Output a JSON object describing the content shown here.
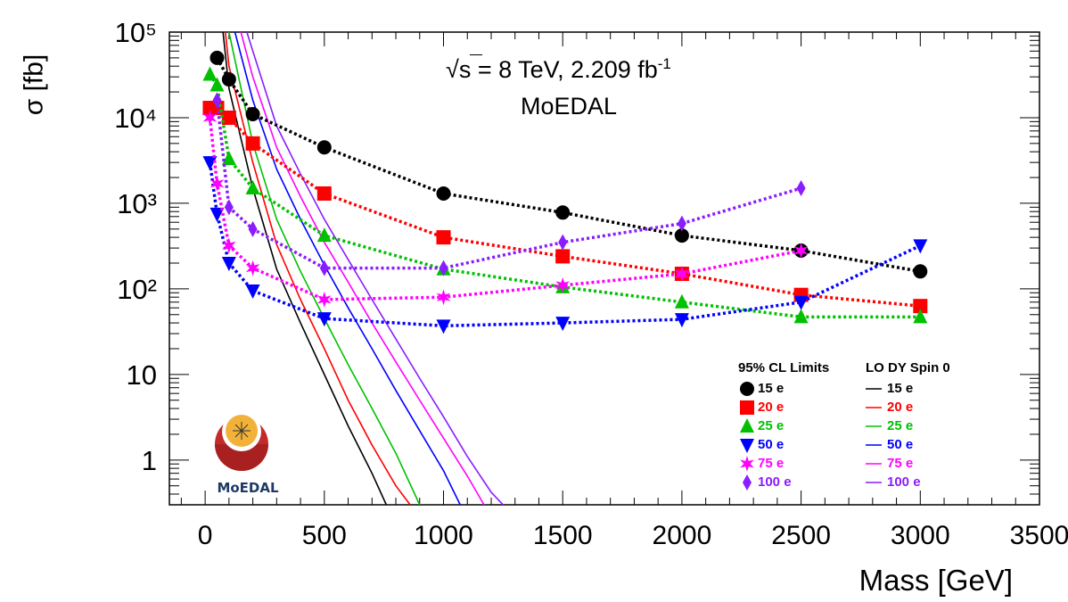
{
  "chart_data": {
    "type": "scatter",
    "xlabel": "Mass [GeV]",
    "ylabel": "σ [fb]",
    "xlim": [
      -150,
      3500
    ],
    "ylim": [
      0.3,
      100000
    ],
    "yscale": "log",
    "grid": false,
    "x_ticks": [
      0,
      500,
      1000,
      1500,
      2000,
      2500,
      3000,
      3500
    ],
    "x_tick_labels": [
      "0",
      "500",
      "1000",
      "1500",
      "2000",
      "2500",
      "3000",
      "3500"
    ],
    "y_ticks": [
      1,
      10,
      100,
      1000,
      10000,
      100000
    ],
    "y_tick_labels": [
      "1",
      "10",
      "10²",
      "10³",
      "10⁴",
      "10⁵"
    ],
    "annotations": {
      "energy_prefix": "s",
      "energy_text": " = 8 TeV, 2.209 fb",
      "lumi_exponent": "-1",
      "experiment": "MoEDAL"
    },
    "legend": {
      "placement": "bottom-right",
      "limits_header": "95% CL Limits",
      "theory_header": "LO DY Spin 0"
    },
    "limit_series": [
      {
        "name": "15 e",
        "color": "#000000",
        "marker": "circle",
        "x": [
          50,
          100,
          200,
          500,
          1000,
          1500,
          2000,
          2500,
          3000
        ],
        "values": [
          50000,
          28000,
          11000,
          4500,
          1300,
          780,
          420,
          280,
          160
        ]
      },
      {
        "name": "20 e",
        "color": "#ff0000",
        "marker": "square",
        "x": [
          20,
          50,
          100,
          200,
          500,
          1000,
          1500,
          2000,
          2500,
          3000
        ],
        "values": [
          13000,
          13000,
          10000,
          5000,
          1300,
          400,
          240,
          150,
          85,
          63
        ]
      },
      {
        "name": "25 e",
        "color": "#00c000",
        "marker": "triangle-up",
        "x": [
          20,
          50,
          100,
          200,
          500,
          1000,
          1500,
          2000,
          2500,
          3000
        ],
        "values": [
          32000,
          24000,
          3300,
          1500,
          420,
          170,
          105,
          70,
          47,
          47
        ]
      },
      {
        "name": "50 e",
        "color": "#0000ff",
        "marker": "triangle-down",
        "x": [
          20,
          50,
          100,
          200,
          500,
          1000,
          1500,
          2000,
          2500,
          3000
        ],
        "values": [
          3000,
          750,
          200,
          95,
          45,
          37,
          40,
          44,
          70,
          320
        ]
      },
      {
        "name": "75 e",
        "color": "#ff00ff",
        "marker": "star",
        "x": [
          20,
          50,
          100,
          200,
          500,
          1000,
          1500,
          2000,
          2500
        ],
        "values": [
          10000,
          1700,
          320,
          175,
          75,
          80,
          110,
          150,
          280
        ]
      },
      {
        "name": "100 e",
        "color": "#8a1cff",
        "marker": "diamond",
        "x": [
          50,
          100,
          200,
          500,
          1000,
          1500,
          2000,
          2500
        ],
        "values": [
          16000,
          900,
          500,
          175,
          175,
          350,
          580,
          1500
        ]
      }
    ],
    "theory_series": [
      {
        "name": "15 e",
        "color": "#000000",
        "x": [
          75,
          100,
          200,
          300,
          400,
          500,
          600,
          700,
          760
        ],
        "values": [
          100000,
          22000,
          1500,
          170,
          40,
          10,
          2.5,
          0.7,
          0.3
        ]
      },
      {
        "name": "20 e",
        "color": "#ff0000",
        "x": [
          85,
          100,
          200,
          300,
          400,
          500,
          600,
          700,
          800,
          860
        ],
        "values": [
          100000,
          40000,
          3000,
          330,
          75,
          20,
          5,
          1.5,
          0.5,
          0.3
        ]
      },
      {
        "name": "25 e",
        "color": "#00c000",
        "x": [
          100,
          200,
          300,
          400,
          500,
          600,
          700,
          800,
          900
        ],
        "values": [
          100000,
          5000,
          650,
          160,
          45,
          13,
          4,
          1.2,
          0.3
        ]
      },
      {
        "name": "50 e",
        "color": "#0000ff",
        "x": [
          125,
          200,
          300,
          400,
          500,
          600,
          700,
          800,
          900,
          1000,
          1070
        ],
        "values": [
          100000,
          16000,
          2500,
          650,
          190,
          60,
          20,
          6.5,
          2.2,
          0.75,
          0.3
        ]
      },
      {
        "name": "75 e",
        "color": "#ff00ff",
        "x": [
          150,
          200,
          300,
          400,
          500,
          600,
          700,
          800,
          900,
          1000,
          1100,
          1170
        ],
        "values": [
          100000,
          30000,
          4500,
          1200,
          350,
          120,
          40,
          14,
          5,
          1.8,
          0.65,
          0.3
        ]
      },
      {
        "name": "100 e",
        "color": "#8a1cff",
        "x": [
          175,
          200,
          300,
          400,
          500,
          600,
          700,
          800,
          900,
          1000,
          1100,
          1200,
          1250
        ],
        "values": [
          100000,
          60000,
          8000,
          2200,
          650,
          220,
          75,
          26,
          9,
          3.2,
          1.1,
          0.42,
          0.3
        ]
      }
    ],
    "logo_text": "MoEDAL"
  }
}
